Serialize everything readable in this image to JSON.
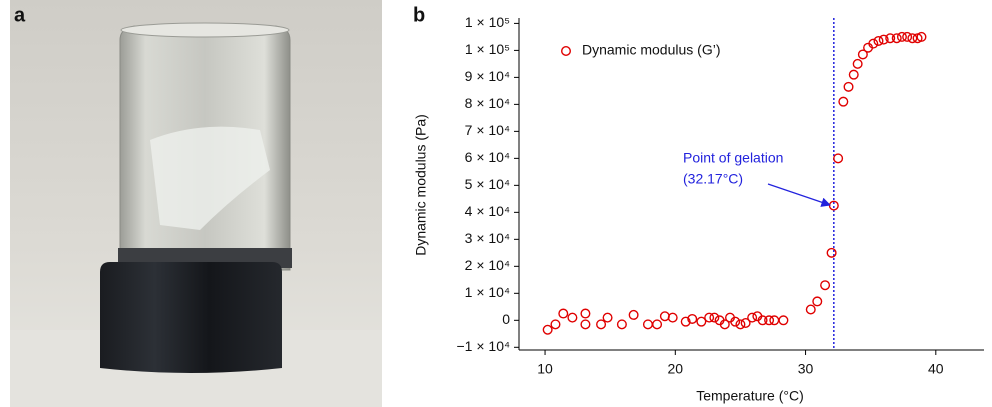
{
  "panel_a": {
    "label": "a"
  },
  "chart_data": {
    "type": "scatter",
    "panel_label": "b",
    "x_label": "Temperature (°C)",
    "y_label": "Dynamic modulus (Pa)",
    "xlim": [
      8,
      43.7
    ],
    "ylim": [
      -11000,
      112000
    ],
    "xticks": [
      10,
      20,
      30,
      40
    ],
    "yticks": [
      {
        "value": -10000,
        "label": "−1 × 10⁴"
      },
      0,
      {
        "value": 10000,
        "label": "1 × 10⁴"
      },
      {
        "value": 20000,
        "label": "2 × 10⁴"
      },
      {
        "value": 30000,
        "label": "3 × 10⁴"
      },
      {
        "value": 40000,
        "label": "4 × 10⁴"
      },
      {
        "value": 50000,
        "label": "5 × 10⁴"
      },
      {
        "value": 60000,
        "label": "6 × 10⁴"
      },
      {
        "value": 70000,
        "label": "7 × 10⁴"
      },
      {
        "value": 80000,
        "label": "8 × 10⁴"
      },
      {
        "value": 90000,
        "label": "9 × 10⁴"
      },
      {
        "value": 100000,
        "label": "1 × 10⁵"
      },
      {
        "value": 110000,
        "label": "1 × 10⁵"
      }
    ],
    "gelation_line": 32.17,
    "gelation_color": "#2222dd",
    "annotation": [
      "Point of gelation",
      "(32.17°C)"
    ],
    "series": [
      {
        "name": "Dynamic modulus (G’)",
        "color": "#e00000",
        "x": [
          10.2,
          10.8,
          11.4,
          12.1,
          13.1,
          13.1,
          14.3,
          14.8,
          15.9,
          16.8,
          17.9,
          18.6,
          19.2,
          19.8,
          20.8,
          21.3,
          22.0,
          22.6,
          23.0,
          23.4,
          23.8,
          24.2,
          24.6,
          25.0,
          25.4,
          25.9,
          26.3,
          26.7,
          27.2,
          27.6,
          28.3,
          30.4,
          30.9,
          31.5,
          32.0,
          32.17,
          32.5,
          32.9,
          33.3,
          33.7,
          34.0,
          34.4,
          34.8,
          35.2,
          35.6,
          36.0,
          36.5,
          37.0,
          37.4,
          37.8,
          38.2,
          38.6,
          38.9
        ],
        "values": [
          -3500,
          -1500,
          2500,
          1000,
          2500,
          -1500,
          -1500,
          1000,
          -1500,
          2000,
          -1500,
          -1500,
          1500,
          1000,
          -500,
          500,
          -500,
          1000,
          1000,
          0,
          -1500,
          1000,
          -500,
          -1500,
          -1000,
          1000,
          1500,
          0,
          0,
          0,
          0,
          4000,
          7000,
          13000,
          25000,
          42500,
          60000,
          81000,
          86500,
          91000,
          95000,
          98500,
          101000,
          102500,
          103500,
          104000,
          104500,
          104500,
          105000,
          105000,
          104500,
          104500,
          105000
        ]
      }
    ]
  }
}
